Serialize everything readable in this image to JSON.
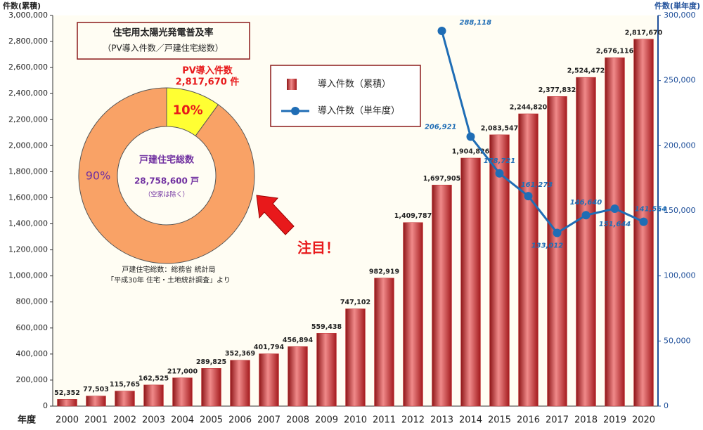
{
  "chart_data": [
    {
      "type": "bar-line",
      "y_label": "件数(累積)",
      "y2_label": "件数(単年度)",
      "x_label": "年度",
      "categories": [
        "2000",
        "2001",
        "2002",
        "2003",
        "2004",
        "2005",
        "2006",
        "2007",
        "2008",
        "2009",
        "2010",
        "2011",
        "2012",
        "2013",
        "2014",
        "2015",
        "2016",
        "2017",
        "2018",
        "2019",
        "2020"
      ],
      "series": [
        {
          "name": "導入件数（累積）",
          "color": "#c0282c",
          "kind": "bar",
          "values": [
            52352,
            77503,
            115765,
            162525,
            217000,
            289825,
            352369,
            401794,
            456894,
            559438,
            747102,
            982919,
            1409787,
            1697905,
            1904826,
            2083547,
            2244820,
            2377832,
            2524472,
            2676116,
            2817670
          ],
          "value_labels": [
            "52,352",
            "77,503",
            "115,765",
            "162,525",
            "217,000",
            "289,825",
            "352,369",
            "401,794",
            "456,894",
            "559,438",
            "747,102",
            "982,919",
            "1,409,787",
            "1,697,905",
            "1,904,826",
            "2,083,547",
            "2,244,820",
            "2,377,832",
            "2,524,472",
            "2,676,116",
            "2,817,670"
          ]
        },
        {
          "name": "導入件数（単年度）",
          "color": "#1f6db5",
          "kind": "line",
          "axis": "y2",
          "values": [
            null,
            null,
            null,
            null,
            null,
            null,
            null,
            null,
            null,
            null,
            null,
            null,
            null,
            288118,
            206921,
            178721,
            161273,
            133012,
            146640,
            151644,
            141554
          ],
          "value_labels": [
            null,
            null,
            null,
            null,
            null,
            null,
            null,
            null,
            null,
            null,
            null,
            null,
            null,
            "288,118",
            "206,921",
            "178,721",
            "161,273",
            "133,012",
            "146,640",
            "151,644",
            "141,554"
          ]
        }
      ],
      "ylim": [
        0,
        3000000
      ],
      "yticks": [
        {
          "value": 0,
          "label": "0"
        },
        {
          "value": 200000,
          "label": "200,000"
        },
        {
          "value": 400000,
          "label": "400,000"
        },
        {
          "value": 600000,
          "label": "600,000"
        },
        {
          "value": 800000,
          "label": "800,000"
        },
        {
          "value": 1000000,
          "label": "1,000,000"
        },
        {
          "value": 1200000,
          "label": "1,200,000"
        },
        {
          "value": 1400000,
          "label": "1,400,000"
        },
        {
          "value": 1600000,
          "label": "1,600,000"
        },
        {
          "value": 1800000,
          "label": "1,800,000"
        },
        {
          "value": 2000000,
          "label": "2,000,000"
        },
        {
          "value": 2200000,
          "label": "2,200,000"
        },
        {
          "value": 2400000,
          "label": "2,400,000"
        },
        {
          "value": 2600000,
          "label": "2,600,000"
        },
        {
          "value": 2800000,
          "label": "2,800,000"
        },
        {
          "value": 3000000,
          "label": "3,000,000"
        }
      ],
      "y2lim": [
        0,
        300000
      ],
      "y2ticks": [
        0,
        {
          "value": 50000,
          "label": "50,000"
        },
        {
          "value": 100000,
          "label": "100,000"
        },
        {
          "value": 150000,
          "label": "150,000"
        },
        {
          "value": 200000,
          "label": "200,000"
        },
        {
          "value": 250000,
          "label": "250,000"
        },
        {
          "value": 300000,
          "label": "300,000"
        }
      ],
      "legend": "upper-center",
      "annotation": "注目！"
    },
    {
      "type": "pie",
      "title": "住宅用太陽光発電普及率",
      "subtitle": "（PV導入件数／戸建住宅総数）",
      "categories": [
        "PV導入件数",
        "戸建住宅総数"
      ],
      "values": [
        10,
        90
      ],
      "value_labels": [
        "10%",
        "90%"
      ],
      "colors": [
        "#ffff33",
        "#f9a266"
      ],
      "pv_count": "2,817,670 件",
      "center_title": "戸建住宅総数",
      "center_value": "28,758,600 戸",
      "center_note": "（空家は除く）",
      "source": [
        "戸建住宅総数：総務省 統計局",
        "「平成30年 住宅・土地統計調査」より"
      ]
    }
  ]
}
